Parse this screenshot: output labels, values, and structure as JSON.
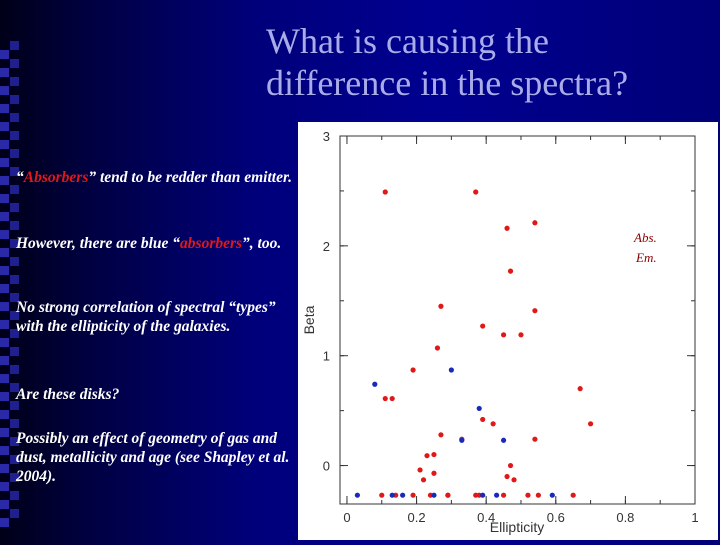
{
  "title": {
    "line1": "What is causing the",
    "line2": "difference in the spectra?"
  },
  "bullets": [
    {
      "parts": [
        "“",
        "Absorbers",
        "” tend to be redder than emitter."
      ]
    },
    {
      "parts": [
        "However, there are blue “",
        "absorbers",
        "”, too."
      ]
    },
    {
      "parts": [
        "No strong correlation of spectral “types” with the ellipticity of the galaxies."
      ]
    },
    {
      "parts": [
        "Are these disks?"
      ]
    },
    {
      "parts": [
        "Possibly an effect of geometry of gas and dust, metallicity and age (see Shapley et al. 2004)."
      ]
    }
  ],
  "legend": {
    "abs_label": "Abs.",
    "em_label": "Em."
  },
  "colors": {
    "absorber": "#e01818",
    "emitter": "#1a2ab8",
    "title": "#a9ace8"
  },
  "chart_data": {
    "type": "scatter",
    "title": "",
    "xlabel": "Ellipticity",
    "ylabel": "Beta",
    "xlim": [
      -0.02,
      1.0
    ],
    "ylim": [
      -0.35,
      3.0
    ],
    "xticks": [
      "0",
      "0.2",
      "0.4",
      "0.6",
      "0.8",
      "1"
    ],
    "xtick_values": [
      0,
      0.2,
      0.4,
      0.6,
      0.8,
      1.0
    ],
    "yticks": [
      "0",
      "1",
      "2",
      "3"
    ],
    "ytick_values": [
      0,
      1,
      2,
      3
    ],
    "series": [
      {
        "name": "Abs.",
        "color": "#e01818",
        "points": [
          [
            0.11,
            2.49
          ],
          [
            0.37,
            2.49
          ],
          [
            0.46,
            2.16
          ],
          [
            0.54,
            2.21
          ],
          [
            0.47,
            1.77
          ],
          [
            0.27,
            1.45
          ],
          [
            0.54,
            1.41
          ],
          [
            0.39,
            1.27
          ],
          [
            0.45,
            1.19
          ],
          [
            0.5,
            1.19
          ],
          [
            0.26,
            1.07
          ],
          [
            0.19,
            0.87
          ],
          [
            0.67,
            0.7
          ],
          [
            0.11,
            0.61
          ],
          [
            0.13,
            0.61
          ],
          [
            0.39,
            0.42
          ],
          [
            0.27,
            0.28
          ],
          [
            0.42,
            0.38
          ],
          [
            0.7,
            0.38
          ],
          [
            0.25,
            0.1
          ],
          [
            0.54,
            0.24
          ],
          [
            0.33,
            0.24
          ],
          [
            0.23,
            0.09
          ],
          [
            0.47,
            0.0
          ],
          [
            0.21,
            -0.04
          ],
          [
            0.25,
            -0.07
          ],
          [
            0.46,
            -0.1
          ],
          [
            0.48,
            -0.13
          ],
          [
            0.22,
            -0.13
          ],
          [
            0.1,
            -0.27
          ],
          [
            0.14,
            -0.27
          ],
          [
            0.19,
            -0.27
          ],
          [
            0.24,
            -0.27
          ],
          [
            0.29,
            -0.27
          ],
          [
            0.37,
            -0.27
          ],
          [
            0.45,
            -0.27
          ],
          [
            0.52,
            -0.27
          ],
          [
            0.55,
            -0.27
          ],
          [
            0.65,
            -0.27
          ],
          [
            0.29,
            -0.27
          ],
          [
            0.38,
            -0.27
          ]
        ]
      },
      {
        "name": "Em.",
        "color": "#1a2ab8",
        "points": [
          [
            0.08,
            0.74
          ],
          [
            0.3,
            0.87
          ],
          [
            0.38,
            0.52
          ],
          [
            0.33,
            0.23
          ],
          [
            0.45,
            0.23
          ],
          [
            0.03,
            -0.27
          ],
          [
            0.13,
            -0.27
          ],
          [
            0.16,
            -0.27
          ],
          [
            0.25,
            -0.27
          ],
          [
            0.39,
            -0.27
          ],
          [
            0.43,
            -0.27
          ],
          [
            0.59,
            -0.27
          ]
        ]
      }
    ]
  }
}
